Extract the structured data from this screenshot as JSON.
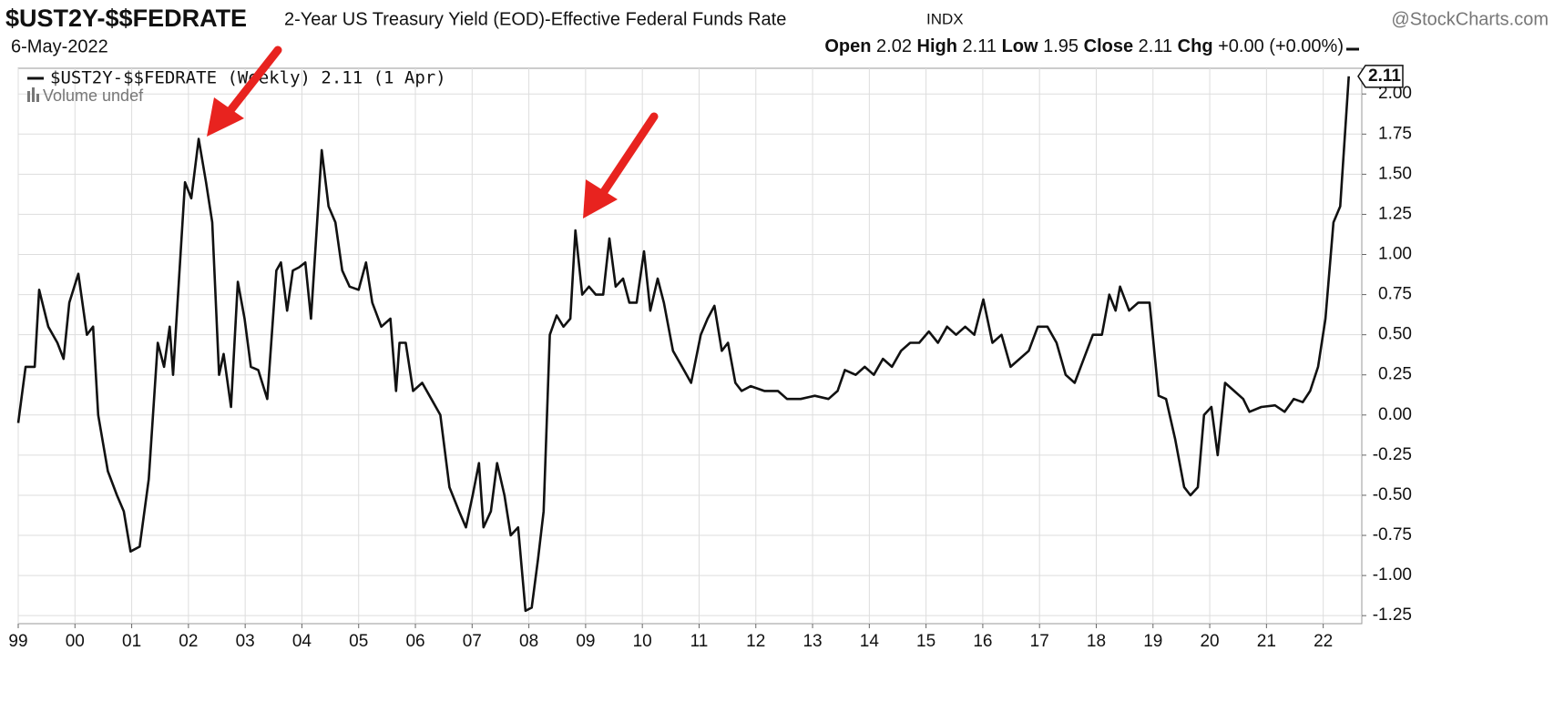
{
  "header": {
    "symbol": "$UST2Y-$$FEDRATE",
    "description": "2-Year US Treasury Yield (EOD)-Effective Federal Funds Rate",
    "exchange": "INDX",
    "source": "@StockCharts.com",
    "date": "6-May-2022",
    "open_label": "Open",
    "open": "2.02",
    "high_label": "High",
    "high": "2.11",
    "low_label": "Low",
    "low": "1.95",
    "close_label": "Close",
    "close": "2.11",
    "chg_label": "Chg",
    "chg": "+0.00 (+0.00%)",
    "volume": "Volume undef"
  },
  "chart_data": {
    "type": "line",
    "xlim": [
      1999,
      2022.68
    ],
    "ylim": [
      -1.3,
      2.16
    ],
    "xticks": [
      {
        "value": 1999,
        "label": "99"
      },
      {
        "value": 2000,
        "label": "00"
      },
      {
        "value": 2001,
        "label": "01"
      },
      {
        "value": 2002,
        "label": "02"
      },
      {
        "value": 2003,
        "label": "03"
      },
      {
        "value": 2004,
        "label": "04"
      },
      {
        "value": 2005,
        "label": "05"
      },
      {
        "value": 2006,
        "label": "06"
      },
      {
        "value": 2007,
        "label": "07"
      },
      {
        "value": 2008,
        "label": "08"
      },
      {
        "value": 2009,
        "label": "09"
      },
      {
        "value": 2010,
        "label": "10"
      },
      {
        "value": 2011,
        "label": "11"
      },
      {
        "value": 2012,
        "label": "12"
      },
      {
        "value": 2013,
        "label": "13"
      },
      {
        "value": 2014,
        "label": "14"
      },
      {
        "value": 2015,
        "label": "15"
      },
      {
        "value": 2016,
        "label": "16"
      },
      {
        "value": 2017,
        "label": "17"
      },
      {
        "value": 2018,
        "label": "18"
      },
      {
        "value": 2019,
        "label": "19"
      },
      {
        "value": 2020,
        "label": "20"
      },
      {
        "value": 2021,
        "label": "21"
      },
      {
        "value": 2022,
        "label": "22"
      }
    ],
    "yticks": [
      {
        "value": 2,
        "label": "2.00"
      },
      {
        "value": 1.75,
        "label": "1.75"
      },
      {
        "value": 1.5,
        "label": "1.50"
      },
      {
        "value": 1.25,
        "label": "1.25"
      },
      {
        "value": 1,
        "label": "1.00"
      },
      {
        "value": 0.75,
        "label": "0.75"
      },
      {
        "value": 0.5,
        "label": "0.50"
      },
      {
        "value": 0.25,
        "label": "0.25"
      },
      {
        "value": 0,
        "label": "0.00"
      },
      {
        "value": -0.25,
        "label": "-0.25"
      },
      {
        "value": -0.5,
        "label": "-0.50"
      },
      {
        "value": -0.75,
        "label": "-0.75"
      },
      {
        "value": -1,
        "label": "-1.00"
      },
      {
        "value": -1.25,
        "label": "-1.25"
      }
    ],
    "grid": true,
    "series": [
      {
        "name": "$UST2Y-$$FEDRATE (Weekly) 2.11 (1 Apr)",
        "color": "#111111",
        "last_label": "2.11",
        "x": [
          1999.0,
          1999.13,
          1999.29,
          1999.37,
          1999.53,
          1999.69,
          1999.8,
          1999.9,
          2000.06,
          2000.21,
          2000.32,
          2000.41,
          2000.58,
          2000.74,
          2000.86,
          2000.98,
          2001.14,
          2001.3,
          2001.46,
          2001.57,
          2001.67,
          2001.73,
          2001.94,
          2002.05,
          2002.18,
          2002.31,
          2002.42,
          2002.54,
          2002.62,
          2002.75,
          2002.87,
          2002.99,
          2003.1,
          2003.23,
          2003.39,
          2003.55,
          2003.63,
          2003.74,
          2003.84,
          2003.95,
          2004.06,
          2004.16,
          2004.35,
          2004.47,
          2004.59,
          2004.71,
          2004.84,
          2005.0,
          2005.13,
          2005.24,
          2005.4,
          2005.56,
          2005.66,
          2005.72,
          2005.83,
          2005.96,
          2006.12,
          2006.28,
          2006.44,
          2006.6,
          2006.77,
          2006.89,
          2007.01,
          2007.12,
          2007.2,
          2007.33,
          2007.44,
          2007.57,
          2007.68,
          2007.81,
          2007.94,
          2008.05,
          2008.16,
          2008.26,
          2008.37,
          2008.49,
          2008.61,
          2008.73,
          2008.82,
          2008.94,
          2009.06,
          2009.18,
          2009.31,
          2009.42,
          2009.53,
          2009.66,
          2009.77,
          2009.9,
          2010.03,
          2010.14,
          2010.27,
          2010.38,
          2010.54,
          2010.7,
          2010.86,
          2011.03,
          2011.15,
          2011.27,
          2011.4,
          2011.51,
          2011.64,
          2011.75,
          2011.91,
          2012.15,
          2012.39,
          2012.55,
          2012.79,
          2013.04,
          2013.28,
          2013.44,
          2013.57,
          2013.76,
          2013.92,
          2014.08,
          2014.24,
          2014.4,
          2014.56,
          2014.72,
          2014.88,
          2015.05,
          2015.21,
          2015.37,
          2015.53,
          2015.69,
          2015.85,
          2016.01,
          2016.17,
          2016.33,
          2016.49,
          2016.65,
          2016.81,
          2016.97,
          2017.14,
          2017.3,
          2017.46,
          2017.62,
          2017.78,
          2017.94,
          2018.1,
          2018.23,
          2018.34,
          2018.42,
          2018.58,
          2018.74,
          2018.94,
          2019.1,
          2019.23,
          2019.39,
          2019.55,
          2019.66,
          2019.79,
          2019.9,
          2020.03,
          2020.14,
          2020.27,
          2020.43,
          2020.59,
          2020.7,
          2020.91,
          2021.15,
          2021.32,
          2021.48,
          2021.64,
          2021.77,
          2021.91,
          2022.04,
          2022.18,
          2022.3,
          2022.45
        ],
        "values": [
          -0.05,
          0.3,
          0.3,
          0.78,
          0.55,
          0.45,
          0.35,
          0.7,
          0.88,
          0.5,
          0.55,
          0.0,
          -0.35,
          -0.5,
          -0.6,
          -0.85,
          -0.82,
          -0.4,
          0.45,
          0.3,
          0.55,
          0.25,
          1.45,
          1.35,
          1.72,
          1.45,
          1.2,
          0.25,
          0.38,
          0.05,
          0.83,
          0.6,
          0.3,
          0.28,
          0.1,
          0.9,
          0.95,
          0.65,
          0.9,
          0.92,
          0.95,
          0.6,
          1.65,
          1.3,
          1.2,
          0.9,
          0.8,
          0.78,
          0.95,
          0.7,
          0.55,
          0.6,
          0.15,
          0.45,
          0.45,
          0.15,
          0.2,
          0.1,
          0.0,
          -0.45,
          -0.6,
          -0.7,
          -0.5,
          -0.3,
          -0.7,
          -0.6,
          -0.3,
          -0.5,
          -0.75,
          -0.7,
          -1.22,
          -1.2,
          -0.9,
          -0.6,
          0.5,
          0.62,
          0.55,
          0.6,
          1.15,
          0.75,
          0.8,
          0.75,
          0.75,
          1.1,
          0.8,
          0.85,
          0.7,
          0.7,
          1.02,
          0.65,
          0.85,
          0.7,
          0.4,
          0.3,
          0.2,
          0.5,
          0.6,
          0.68,
          0.4,
          0.45,
          0.2,
          0.15,
          0.18,
          0.15,
          0.15,
          0.1,
          0.1,
          0.12,
          0.1,
          0.15,
          0.28,
          0.25,
          0.3,
          0.25,
          0.35,
          0.3,
          0.4,
          0.45,
          0.45,
          0.52,
          0.45,
          0.55,
          0.5,
          0.55,
          0.5,
          0.72,
          0.45,
          0.5,
          0.3,
          0.35,
          0.4,
          0.55,
          0.55,
          0.45,
          0.25,
          0.2,
          0.35,
          0.5,
          0.5,
          0.75,
          0.65,
          0.8,
          0.65,
          0.7,
          0.7,
          0.12,
          0.1,
          -0.15,
          -0.45,
          -0.5,
          -0.45,
          0.0,
          0.05,
          -0.25,
          0.2,
          0.15,
          0.1,
          0.02,
          0.05,
          0.06,
          0.02,
          0.1,
          0.08,
          0.15,
          0.3,
          0.6,
          1.2,
          1.3,
          2.11
        ]
      }
    ]
  }
}
